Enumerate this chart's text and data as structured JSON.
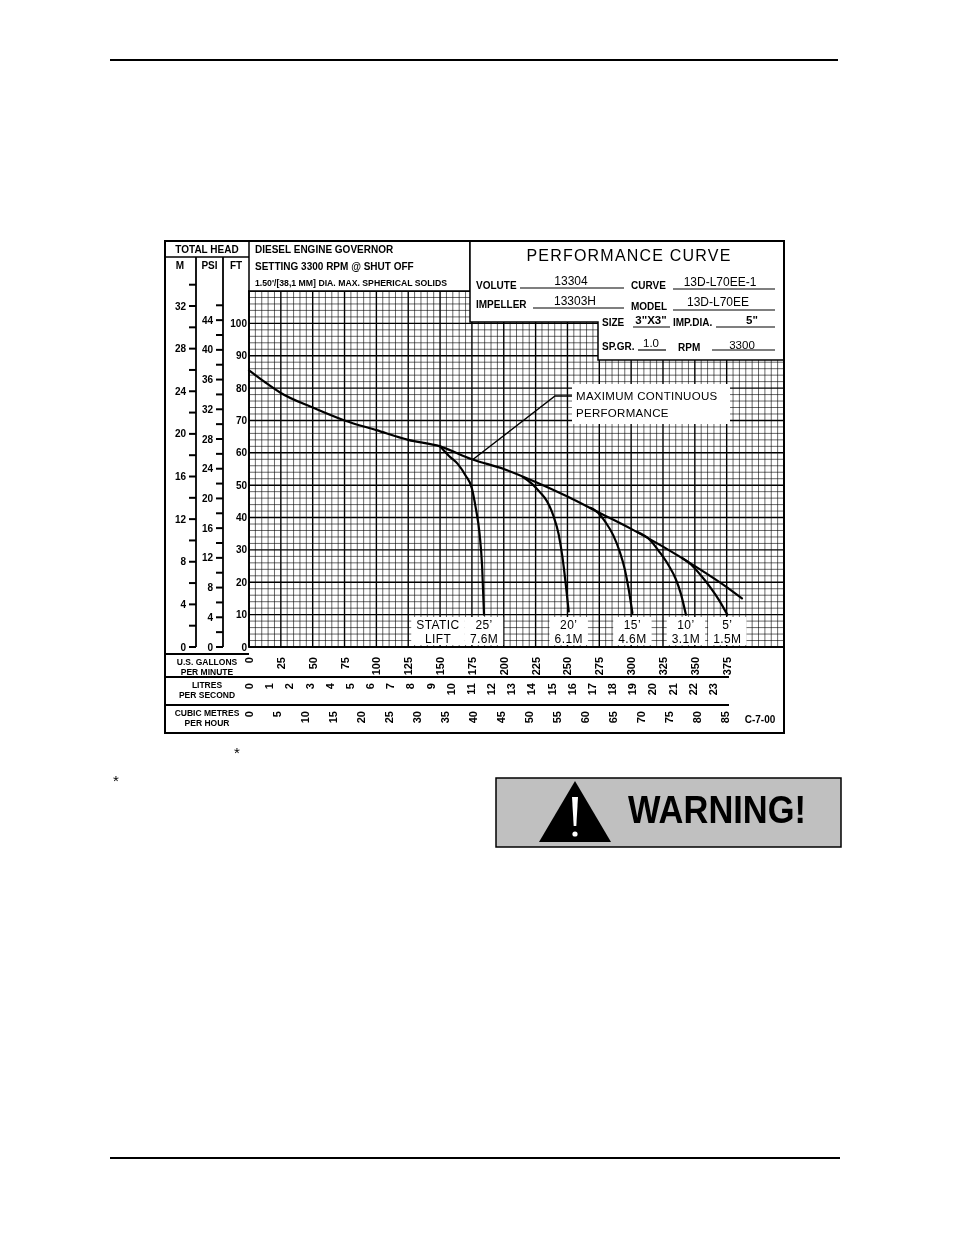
{
  "chart_data": {
    "type": "line",
    "title": "PERFORMANCE CURVE",
    "xlabel": "U.S. GALLONS PER MINUTE",
    "x2label": "LITRES PER SECOND",
    "ylabel": "FT",
    "y2label": "M",
    "y3label": "PSI",
    "xlim": [
      0,
      420
    ],
    "xticks": [
      0,
      25,
      50,
      75,
      100,
      125,
      150,
      175,
      200,
      225,
      250,
      275,
      300,
      325,
      350,
      375
    ],
    "x2lim": [
      0,
      23.7
    ],
    "x2ticks": [
      0,
      1,
      2,
      3,
      4,
      5,
      6,
      7,
      8,
      9,
      10,
      11,
      12,
      13,
      14,
      15,
      16,
      17,
      18,
      19,
      20,
      21,
      22,
      23
    ],
    "ylim": [
      0,
      110
    ],
    "yticks": [
      0,
      10,
      20,
      30,
      40,
      50,
      60,
      70,
      80,
      90,
      100
    ],
    "y2lim": [
      0,
      36.6
    ],
    "y2ticks": [
      0,
      4,
      8,
      12,
      16,
      20,
      24,
      28,
      32
    ],
    "y3lim": [
      0,
      52.5
    ],
    "y3ticks": [
      0,
      4,
      8,
      12,
      16,
      20,
      24,
      28,
      32,
      36,
      40,
      44
    ],
    "grid": true,
    "series": [
      {
        "color": "#000000",
        "x": [
          0,
          12,
          25,
          50,
          75,
          100,
          125,
          150,
          175,
          200,
          225,
          250,
          275,
          300,
          325,
          350,
          375,
          387
        ],
        "values": [
          85.5,
          82,
          78.5,
          74,
          70,
          67,
          64,
          62,
          58,
          55,
          51,
          46.5,
          41.5,
          36.5,
          31,
          25,
          18.5,
          15
        ]
      },
      {
        "name": "25’ 7.6M",
        "color": "#000000",
        "x": [
          150,
          157,
          164,
          170,
          175,
          178,
          181,
          183,
          184.5
        ],
        "values": [
          62,
          59,
          56.5,
          53,
          49,
          43,
          35,
          25,
          10
        ]
      },
      {
        "name": "20’ 6.1M",
        "color": "#000000",
        "x": [
          215,
          222,
          228,
          234,
          239,
          243,
          246,
          248.5,
          251
        ],
        "values": [
          52.5,
          50.5,
          48,
          45,
          40.5,
          35,
          28,
          20,
          11
        ]
      },
      {
        "name": "15’ 4.6M",
        "color": "#000000",
        "x": [
          268,
          274,
          280,
          286,
          291,
          295,
          298,
          301
        ],
        "values": [
          43,
          41.5,
          38.5,
          34.5,
          29.5,
          24,
          18,
          10.5
        ]
      },
      {
        "name": "10’ 3.1M",
        "color": "#000000",
        "x": [
          305,
          315,
          322,
          329,
          335,
          339,
          343
        ],
        "values": [
          35.5,
          33,
          29.5,
          25.5,
          21,
          16.5,
          10
        ]
      },
      {
        "name": "5’ 1.5M",
        "color": "#000000",
        "x": [
          340,
          347,
          355,
          362,
          369,
          375.5
        ],
        "values": [
          27.5,
          25.5,
          22,
          18.5,
          14.5,
          10
        ]
      }
    ],
    "annotations": [
      "TOTAL HEAD",
      "DIESEL ENGINE GOVERNOR SETTING 3300 RPM @ SHUT OFF",
      "1.50'/[38,1 MM] DIA. MAX. SPHERICAL SOLIDS",
      "VOLUTE",
      "13304",
      "CURVE",
      "13D-L70EE-1",
      "IMPELLER",
      "13303H",
      "MODEL",
      "13D-L70EE",
      "SIZE",
      "3\"X3\"",
      "IMP.DIA.",
      "5\"",
      "SP.GR.",
      "1.0",
      "RPM",
      "3300",
      "STATIC LIFT",
      {
        "text": "MAXIMUM CONTINUOUS PERFORMANCE",
        "x": 176,
        "y": 58
      },
      "C-7-00",
      "*",
      "*",
      "WARNING!",
      "CUBIC METRES PER HOUR",
      "0",
      "5",
      "10",
      "15",
      "20",
      "25",
      "30",
      "35",
      "40",
      "45",
      "50",
      "55",
      "60",
      "65",
      "70",
      "75",
      "80",
      "85"
    ]
  }
}
